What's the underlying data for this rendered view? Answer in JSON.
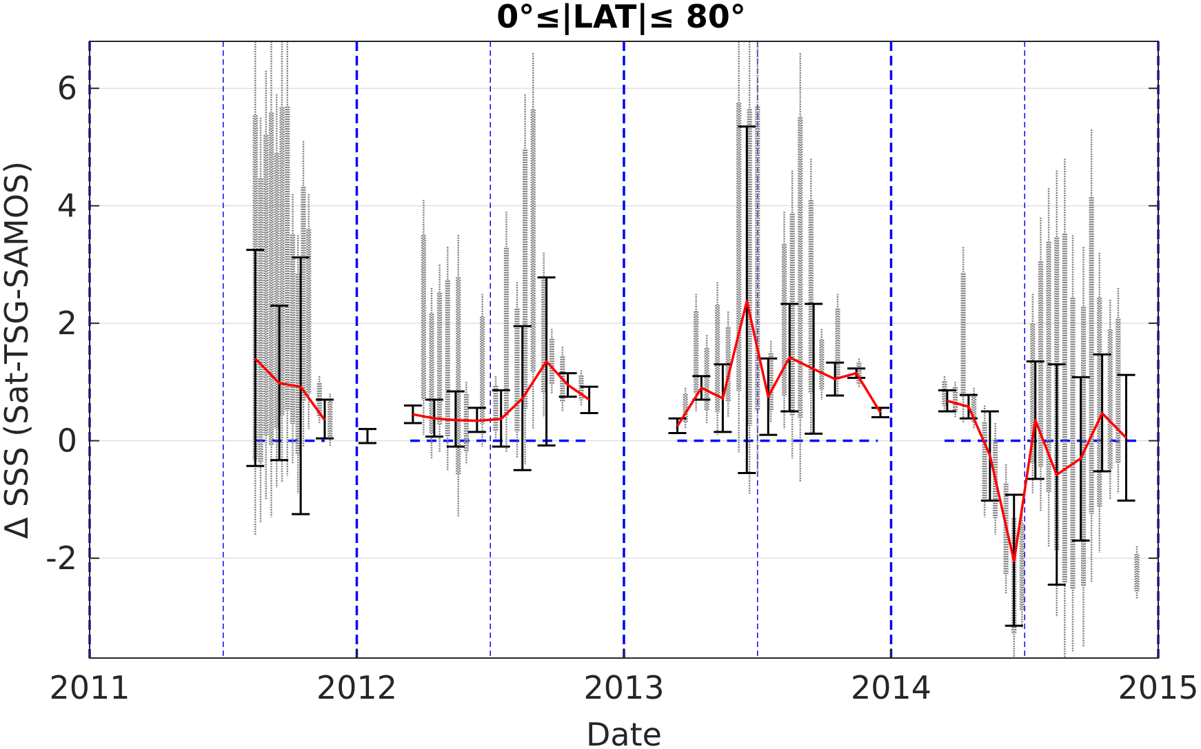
{
  "chart_data": {
    "type": "scatter",
    "title": "0°≤|LAT|≤ 80°",
    "xlabel": "Date",
    "ylabel": "Δ SSS (Sat-TSG-SAMOS)",
    "xlim": [
      2011.0,
      2015.0
    ],
    "ylim": [
      -3.7,
      6.8
    ],
    "x_ticks": [
      2011,
      2012,
      2013,
      2014,
      2015
    ],
    "x_tick_labels": [
      "2011",
      "2012",
      "2013",
      "2014",
      "2015"
    ],
    "y_ticks": [
      -2,
      0,
      2,
      4,
      6
    ],
    "y_tick_labels": [
      "-2",
      "0",
      "2",
      "4",
      "6"
    ],
    "grid": "horizontal",
    "colors": {
      "scatter": "#808080",
      "mean_line": "#ff0000",
      "error_bars": "#000000",
      "zero_line": "#0000ff",
      "year_lines": "#0000ff"
    },
    "year_boundaries": [
      2011.0,
      2012.0,
      2013.0,
      2014.0,
      2015.0
    ],
    "half_year_lines": [
      2011.5,
      2012.5,
      2013.5,
      2014.5
    ],
    "zero_line_segments": [
      [
        2011.62,
        2011.88
      ],
      [
        2012.2,
        2012.88
      ],
      [
        2013.2,
        2013.95
      ],
      [
        2014.2,
        2014.92
      ]
    ],
    "monthly_mean": [
      {
        "x": 2011.62,
        "mean": 1.4,
        "lo": -0.43,
        "hi": 3.25
      },
      {
        "x": 2011.71,
        "mean": 0.98,
        "lo": -0.33,
        "hi": 2.3
      },
      {
        "x": 2011.79,
        "mean": 0.92,
        "lo": -1.25,
        "hi": 3.12
      },
      {
        "x": 2011.88,
        "mean": 0.35,
        "lo": 0.04,
        "hi": 0.7
      },
      {
        "x": 2012.04,
        "mean": 0.08,
        "lo": -0.04,
        "hi": 0.2
      },
      {
        "x": 2012.21,
        "mean": 0.45,
        "lo": 0.3,
        "hi": 0.6
      },
      {
        "x": 2012.29,
        "mean": 0.38,
        "lo": 0.07,
        "hi": 0.7
      },
      {
        "x": 2012.37,
        "mean": 0.35,
        "lo": -0.1,
        "hi": 0.84
      },
      {
        "x": 2012.45,
        "mean": 0.34,
        "lo": 0.15,
        "hi": 0.56
      },
      {
        "x": 2012.54,
        "mean": 0.37,
        "lo": -0.1,
        "hi": 0.86
      },
      {
        "x": 2012.62,
        "mean": 0.72,
        "lo": -0.5,
        "hi": 1.95
      },
      {
        "x": 2012.71,
        "mean": 1.35,
        "lo": -0.08,
        "hi": 2.78
      },
      {
        "x": 2012.79,
        "mean": 0.95,
        "lo": 0.75,
        "hi": 1.15
      },
      {
        "x": 2012.87,
        "mean": 0.7,
        "lo": 0.47,
        "hi": 0.92
      },
      {
        "x": 2013.2,
        "mean": 0.25,
        "lo": 0.13,
        "hi": 0.38
      },
      {
        "x": 2013.29,
        "mean": 0.9,
        "lo": 0.7,
        "hi": 1.1
      },
      {
        "x": 2013.37,
        "mean": 0.72,
        "lo": 0.15,
        "hi": 1.3
      },
      {
        "x": 2013.46,
        "mean": 2.38,
        "lo": -0.55,
        "hi": 5.35
      },
      {
        "x": 2013.54,
        "mean": 0.75,
        "lo": 0.1,
        "hi": 1.4
      },
      {
        "x": 2013.62,
        "mean": 1.42,
        "lo": 0.5,
        "hi": 2.33
      },
      {
        "x": 2013.71,
        "mean": 1.22,
        "lo": 0.12,
        "hi": 2.33
      },
      {
        "x": 2013.79,
        "mean": 1.05,
        "lo": 0.77,
        "hi": 1.33
      },
      {
        "x": 2013.87,
        "mean": 1.15,
        "lo": 1.07,
        "hi": 1.23
      },
      {
        "x": 2013.96,
        "mean": 0.48,
        "lo": 0.4,
        "hi": 0.56
      },
      {
        "x": 2014.21,
        "mean": 0.68,
        "lo": 0.5,
        "hi": 0.86
      },
      {
        "x": 2014.29,
        "mean": 0.58,
        "lo": 0.38,
        "hi": 0.78
      },
      {
        "x": 2014.37,
        "mean": -0.25,
        "lo": -1.02,
        "hi": 0.5
      },
      {
        "x": 2014.46,
        "mean": -2.05,
        "lo": -3.15,
        "hi": -0.92
      },
      {
        "x": 2014.54,
        "mean": 0.35,
        "lo": -0.65,
        "hi": 1.35
      },
      {
        "x": 2014.62,
        "mean": -0.58,
        "lo": -2.45,
        "hi": 1.3
      },
      {
        "x": 2014.71,
        "mean": -0.3,
        "lo": -1.7,
        "hi": 1.08
      },
      {
        "x": 2014.79,
        "mean": 0.47,
        "lo": -0.52,
        "hi": 1.47
      },
      {
        "x": 2014.88,
        "mean": 0.05,
        "lo": -1.02,
        "hi": 1.12
      }
    ],
    "scatter_streaks": [
      {
        "x": 2011.62,
        "lo": -1.6,
        "hi": 6.8
      },
      {
        "x": 2011.64,
        "lo": -1.4,
        "hi": 5.5
      },
      {
        "x": 2011.66,
        "lo": -1.0,
        "hi": 6.3
      },
      {
        "x": 2011.68,
        "lo": -1.3,
        "hi": 6.8
      },
      {
        "x": 2011.7,
        "lo": -0.8,
        "hi": 5.9
      },
      {
        "x": 2011.72,
        "lo": -0.7,
        "hi": 6.8
      },
      {
        "x": 2011.74,
        "lo": -0.6,
        "hi": 6.8
      },
      {
        "x": 2011.76,
        "lo": -0.4,
        "hi": 4.2
      },
      {
        "x": 2011.78,
        "lo": -0.9,
        "hi": 3.5
      },
      {
        "x": 2011.8,
        "lo": -0.1,
        "hi": 5.1
      },
      {
        "x": 2011.82,
        "lo": 0.2,
        "hi": 4.2
      },
      {
        "x": 2011.86,
        "lo": 0.3,
        "hi": 1.1
      },
      {
        "x": 2011.9,
        "lo": -0.1,
        "hi": 0.8
      },
      {
        "x": 2012.25,
        "lo": 0.1,
        "hi": 4.1
      },
      {
        "x": 2012.28,
        "lo": -0.3,
        "hi": 2.6
      },
      {
        "x": 2012.31,
        "lo": -0.2,
        "hi": 3.0
      },
      {
        "x": 2012.34,
        "lo": -0.5,
        "hi": 3.3
      },
      {
        "x": 2012.38,
        "lo": -1.3,
        "hi": 3.5
      },
      {
        "x": 2012.41,
        "lo": -0.4,
        "hi": 1.0
      },
      {
        "x": 2012.47,
        "lo": -0.1,
        "hi": 2.5
      },
      {
        "x": 2012.52,
        "lo": 0.0,
        "hi": 1.1
      },
      {
        "x": 2012.56,
        "lo": -0.2,
        "hi": 3.9
      },
      {
        "x": 2012.6,
        "lo": -0.3,
        "hi": 2.7
      },
      {
        "x": 2012.63,
        "lo": -0.4,
        "hi": 5.9
      },
      {
        "x": 2012.66,
        "lo": 0.2,
        "hi": 6.6
      },
      {
        "x": 2012.7,
        "lo": 0.4,
        "hi": 3.2
      },
      {
        "x": 2012.73,
        "lo": 0.8,
        "hi": 1.9
      },
      {
        "x": 2012.77,
        "lo": 0.5,
        "hi": 1.6
      },
      {
        "x": 2012.84,
        "lo": 0.6,
        "hi": 1.2
      },
      {
        "x": 2013.23,
        "lo": 0.2,
        "hi": 0.9
      },
      {
        "x": 2013.27,
        "lo": 0.5,
        "hi": 2.5
      },
      {
        "x": 2013.31,
        "lo": 0.3,
        "hi": 1.8
      },
      {
        "x": 2013.35,
        "lo": 0.1,
        "hi": 2.7
      },
      {
        "x": 2013.39,
        "lo": 0.4,
        "hi": 2.2
      },
      {
        "x": 2013.43,
        "lo": -0.2,
        "hi": 6.8
      },
      {
        "x": 2013.47,
        "lo": -0.9,
        "hi": 6.8
      },
      {
        "x": 2013.5,
        "lo": -0.6,
        "hi": 6.8
      },
      {
        "x": 2013.55,
        "lo": 0.3,
        "hi": 1.7
      },
      {
        "x": 2013.6,
        "lo": 0.2,
        "hi": 3.9
      },
      {
        "x": 2013.63,
        "lo": -0.3,
        "hi": 4.6
      },
      {
        "x": 2013.66,
        "lo": -0.7,
        "hi": 6.6
      },
      {
        "x": 2013.7,
        "lo": 0.1,
        "hi": 4.8
      },
      {
        "x": 2013.74,
        "lo": 0.7,
        "hi": 1.9
      },
      {
        "x": 2013.8,
        "lo": 0.8,
        "hi": 2.5
      },
      {
        "x": 2013.88,
        "lo": 0.9,
        "hi": 1.4
      },
      {
        "x": 2014.2,
        "lo": 0.5,
        "hi": 1.1
      },
      {
        "x": 2014.24,
        "lo": 0.4,
        "hi": 1.0
      },
      {
        "x": 2014.27,
        "lo": 0.3,
        "hi": 3.3
      },
      {
        "x": 2014.31,
        "lo": 0.2,
        "hi": 0.9
      },
      {
        "x": 2014.35,
        "lo": -1.3,
        "hi": 0.6
      },
      {
        "x": 2014.39,
        "lo": -1.6,
        "hi": 0.3
      },
      {
        "x": 2014.43,
        "lo": -2.6,
        "hi": -0.4
      },
      {
        "x": 2014.46,
        "lo": -3.7,
        "hi": -0.9
      },
      {
        "x": 2014.49,
        "lo": -3.2,
        "hi": -1.1
      },
      {
        "x": 2014.53,
        "lo": -0.9,
        "hi": 2.5
      },
      {
        "x": 2014.56,
        "lo": -1.2,
        "hi": 3.8
      },
      {
        "x": 2014.59,
        "lo": -1.8,
        "hi": 4.3
      },
      {
        "x": 2014.62,
        "lo": -3.0,
        "hi": 4.6
      },
      {
        "x": 2014.65,
        "lo": -3.7,
        "hi": 4.8
      },
      {
        "x": 2014.68,
        "lo": -3.6,
        "hi": 3.5
      },
      {
        "x": 2014.72,
        "lo": -3.5,
        "hi": 3.3
      },
      {
        "x": 2014.75,
        "lo": -2.4,
        "hi": 5.3
      },
      {
        "x": 2014.78,
        "lo": -1.9,
        "hi": 3.2
      },
      {
        "x": 2014.82,
        "lo": -1.0,
        "hi": 2.4
      },
      {
        "x": 2014.85,
        "lo": -0.9,
        "hi": 2.6
      },
      {
        "x": 2014.92,
        "lo": -2.7,
        "hi": -1.8
      }
    ]
  }
}
